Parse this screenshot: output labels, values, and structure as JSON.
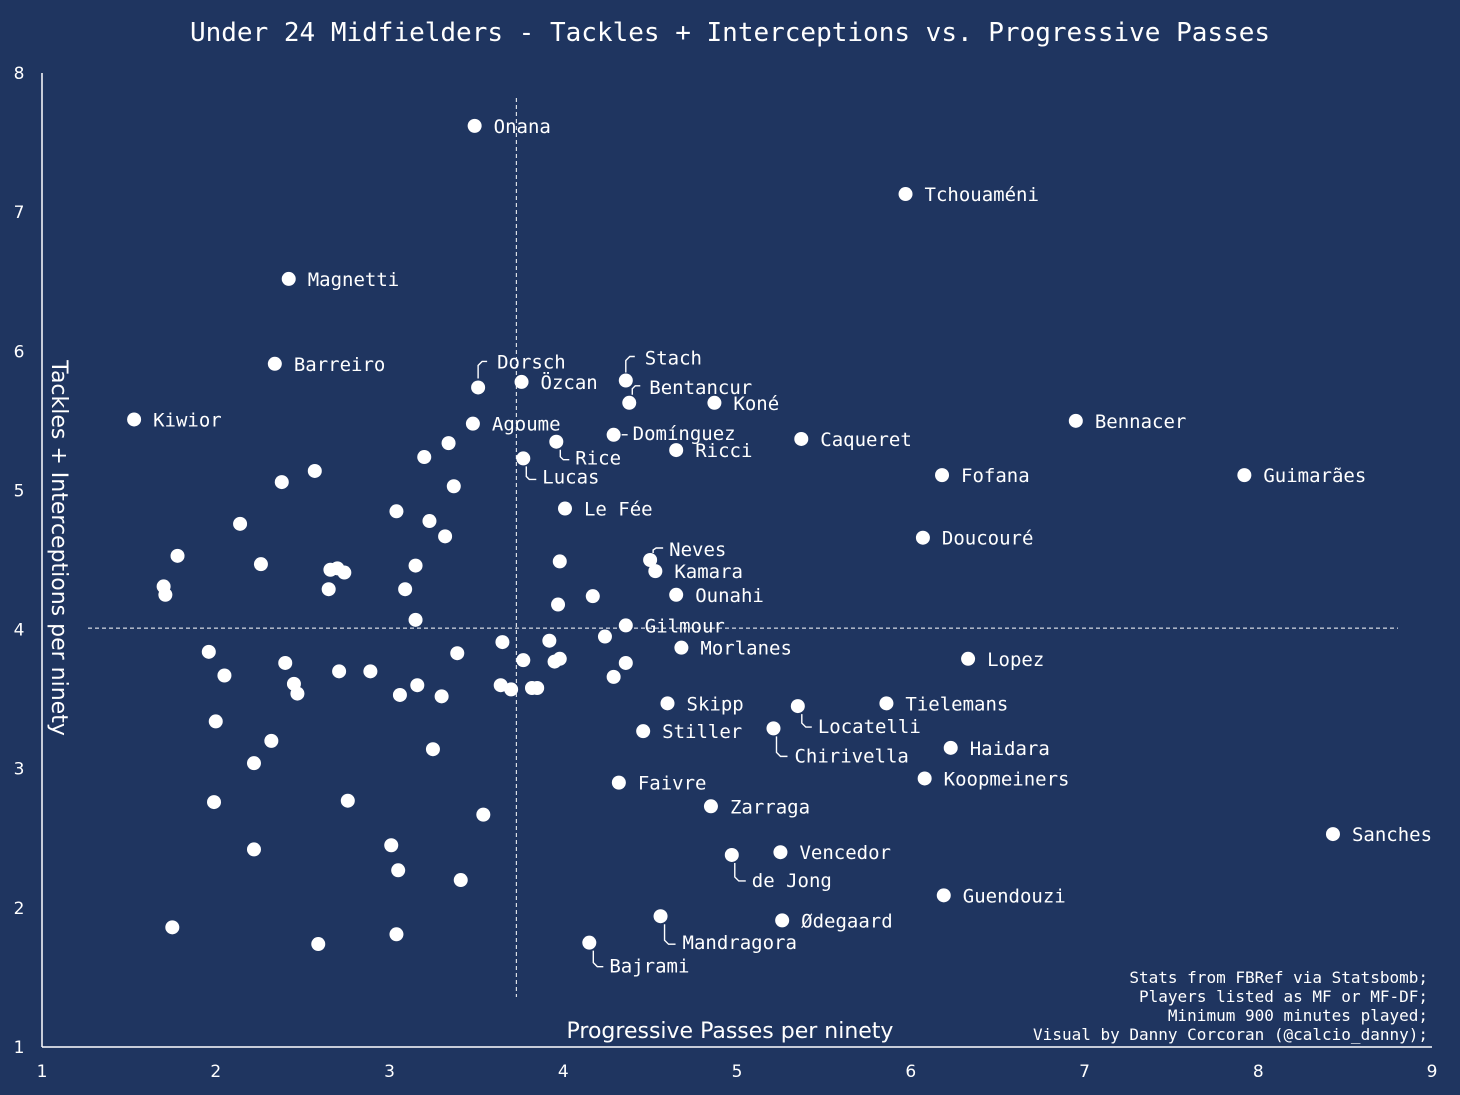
{
  "chart_data": {
    "type": "scatter",
    "title": "Under 24 Midfielders - Tackles + Interceptions vs. Progressive Passes",
    "xlabel": "Progressive Passes per ninety",
    "ylabel": "Tackles + Interceptions per ninety",
    "xlim": [
      1,
      9
    ],
    "ylim": [
      1,
      8
    ],
    "xticks": [
      "1",
      "2",
      "3",
      "4",
      "5",
      "6",
      "7",
      "8",
      "9"
    ],
    "yticks": [
      "1",
      "2",
      "3",
      "4",
      "5",
      "6",
      "7",
      "8"
    ],
    "reference_lines": {
      "x": 3.73,
      "y": 4.01
    },
    "grid": false,
    "colors": {
      "background": "#1f3560",
      "points": "#ffffff",
      "text": "#ffffff"
    },
    "footnote": [
      "Stats from FBRef via Statsbomb;",
      "Players listed as MF or MF-DF;",
      "Minimum 900 minutes played;",
      "Visual by Danny Corcoran (@calcio_danny);"
    ],
    "labeled_points": [
      {
        "name": "Onana",
        "x": 3.49,
        "y": 7.62,
        "label": "right"
      },
      {
        "name": "Tchouaméni",
        "x": 5.97,
        "y": 7.13,
        "label": "right"
      },
      {
        "name": "Magnetti",
        "x": 2.42,
        "y": 6.52,
        "label": "right"
      },
      {
        "name": "Barreiro",
        "x": 2.34,
        "y": 5.91,
        "label": "right"
      },
      {
        "name": "Dorsch",
        "x": 3.51,
        "y": 5.74,
        "label": "dorsch"
      },
      {
        "name": "Özcan",
        "x": 3.76,
        "y": 5.78,
        "label": "right"
      },
      {
        "name": "Stach",
        "x": 4.36,
        "y": 5.79,
        "label": "stach"
      },
      {
        "name": "Bentancur",
        "x": 4.38,
        "y": 5.63,
        "label": "bentancur"
      },
      {
        "name": "Koné",
        "x": 4.87,
        "y": 5.63,
        "label": "right"
      },
      {
        "name": "Kiwior",
        "x": 1.53,
        "y": 5.51,
        "label": "right"
      },
      {
        "name": "Bennacer",
        "x": 6.95,
        "y": 5.5,
        "label": "right"
      },
      {
        "name": "Agoume",
        "x": 3.48,
        "y": 5.48,
        "label": "right"
      },
      {
        "name": "Domínguez",
        "x": 4.29,
        "y": 5.4,
        "label": "dominguez"
      },
      {
        "name": "Caqueret",
        "x": 5.37,
        "y": 5.37,
        "label": "right"
      },
      {
        "name": "Rice",
        "x": 3.96,
        "y": 5.35,
        "label": "rice"
      },
      {
        "name": "Ricci",
        "x": 4.65,
        "y": 5.29,
        "label": "right"
      },
      {
        "name": "Lucas",
        "x": 3.77,
        "y": 5.23,
        "label": "lucas"
      },
      {
        "name": "Fofana",
        "x": 6.18,
        "y": 5.11,
        "label": "right"
      },
      {
        "name": "Guimarães",
        "x": 7.92,
        "y": 5.11,
        "label": "right"
      },
      {
        "name": "Le Fée",
        "x": 4.01,
        "y": 4.87,
        "label": "right"
      },
      {
        "name": "Doucouré",
        "x": 6.07,
        "y": 4.66,
        "label": "right"
      },
      {
        "name": "Neves",
        "x": 4.5,
        "y": 4.5,
        "label": "neves"
      },
      {
        "name": "Kamara",
        "x": 4.53,
        "y": 4.42,
        "label": "right"
      },
      {
        "name": "Ounahi",
        "x": 4.65,
        "y": 4.25,
        "label": "right"
      },
      {
        "name": "Gilmour",
        "x": 4.36,
        "y": 4.03,
        "label": "right"
      },
      {
        "name": "Morlanes",
        "x": 4.68,
        "y": 3.87,
        "label": "right"
      },
      {
        "name": "Lopez",
        "x": 6.33,
        "y": 3.79,
        "label": "right"
      },
      {
        "name": "Skipp",
        "x": 4.6,
        "y": 3.47,
        "label": "right"
      },
      {
        "name": "Tielemans",
        "x": 5.86,
        "y": 3.47,
        "label": "right"
      },
      {
        "name": "Locatelli",
        "x": 5.35,
        "y": 3.45,
        "label": "locatelli"
      },
      {
        "name": "Stiller",
        "x": 4.46,
        "y": 3.27,
        "label": "right"
      },
      {
        "name": "Chirivella",
        "x": 5.21,
        "y": 3.29,
        "label": "chirivella"
      },
      {
        "name": "Haidara",
        "x": 6.23,
        "y": 3.15,
        "label": "right"
      },
      {
        "name": "Faivre",
        "x": 4.32,
        "y": 2.9,
        "label": "right"
      },
      {
        "name": "Koopmeiners",
        "x": 6.08,
        "y": 2.93,
        "label": "right"
      },
      {
        "name": "Zarraga",
        "x": 4.85,
        "y": 2.73,
        "label": "right"
      },
      {
        "name": "Sanches",
        "x": 8.43,
        "y": 2.53,
        "label": "right"
      },
      {
        "name": "Vencedor",
        "x": 5.25,
        "y": 2.4,
        "label": "right"
      },
      {
        "name": "de Jong",
        "x": 4.97,
        "y": 2.38,
        "label": "dejong"
      },
      {
        "name": "Guendouzi",
        "x": 6.19,
        "y": 2.09,
        "label": "right"
      },
      {
        "name": "Ødegaard",
        "x": 5.26,
        "y": 1.91,
        "label": "right"
      },
      {
        "name": "Mandragora",
        "x": 4.56,
        "y": 1.94,
        "label": "mandragora"
      },
      {
        "name": "Bajrami",
        "x": 4.15,
        "y": 1.75,
        "label": "bajrami"
      }
    ],
    "unlabeled_points": [
      {
        "x": 2.57,
        "y": 5.14
      },
      {
        "x": 2.38,
        "y": 5.06
      },
      {
        "x": 3.34,
        "y": 5.34
      },
      {
        "x": 3.2,
        "y": 5.24
      },
      {
        "x": 3.37,
        "y": 5.03
      },
      {
        "x": 3.04,
        "y": 4.85
      },
      {
        "x": 3.23,
        "y": 4.78
      },
      {
        "x": 3.32,
        "y": 4.67
      },
      {
        "x": 2.14,
        "y": 4.76
      },
      {
        "x": 1.78,
        "y": 4.53
      },
      {
        "x": 2.26,
        "y": 4.47
      },
      {
        "x": 3.15,
        "y": 4.46
      },
      {
        "x": 2.66,
        "y": 4.43
      },
      {
        "x": 2.7,
        "y": 4.44
      },
      {
        "x": 2.74,
        "y": 4.41
      },
      {
        "x": 1.7,
        "y": 4.31
      },
      {
        "x": 1.71,
        "y": 4.25
      },
      {
        "x": 2.65,
        "y": 4.29
      },
      {
        "x": 3.09,
        "y": 4.29
      },
      {
        "x": 3.98,
        "y": 4.49
      },
      {
        "x": 4.17,
        "y": 4.24
      },
      {
        "x": 3.97,
        "y": 4.18
      },
      {
        "x": 3.15,
        "y": 4.07
      },
      {
        "x": 4.24,
        "y": 3.95
      },
      {
        "x": 3.92,
        "y": 3.92
      },
      {
        "x": 3.65,
        "y": 3.91
      },
      {
        "x": 3.39,
        "y": 3.83
      },
      {
        "x": 1.96,
        "y": 3.84
      },
      {
        "x": 2.4,
        "y": 3.76
      },
      {
        "x": 3.77,
        "y": 3.78
      },
      {
        "x": 3.95,
        "y": 3.77
      },
      {
        "x": 3.98,
        "y": 3.79
      },
      {
        "x": 4.36,
        "y": 3.76
      },
      {
        "x": 2.05,
        "y": 3.67
      },
      {
        "x": 2.71,
        "y": 3.7
      },
      {
        "x": 2.89,
        "y": 3.7
      },
      {
        "x": 4.29,
        "y": 3.66
      },
      {
        "x": 2.45,
        "y": 3.61
      },
      {
        "x": 2.47,
        "y": 3.54
      },
      {
        "x": 3.16,
        "y": 3.6
      },
      {
        "x": 3.64,
        "y": 3.6
      },
      {
        "x": 3.7,
        "y": 3.57
      },
      {
        "x": 3.82,
        "y": 3.58
      },
      {
        "x": 3.85,
        "y": 3.58
      },
      {
        "x": 3.06,
        "y": 3.53
      },
      {
        "x": 3.3,
        "y": 3.52
      },
      {
        "x": 2.0,
        "y": 3.34
      },
      {
        "x": 2.32,
        "y": 3.2
      },
      {
        "x": 3.25,
        "y": 3.14
      },
      {
        "x": 2.22,
        "y": 3.04
      },
      {
        "x": 1.99,
        "y": 2.76
      },
      {
        "x": 2.76,
        "y": 2.77
      },
      {
        "x": 3.54,
        "y": 2.67
      },
      {
        "x": 3.01,
        "y": 2.45
      },
      {
        "x": 2.22,
        "y": 2.42
      },
      {
        "x": 3.05,
        "y": 2.27
      },
      {
        "x": 3.41,
        "y": 2.2
      },
      {
        "x": 1.75,
        "y": 1.86
      },
      {
        "x": 3.04,
        "y": 1.81
      },
      {
        "x": 2.59,
        "y": 1.74
      }
    ]
  }
}
